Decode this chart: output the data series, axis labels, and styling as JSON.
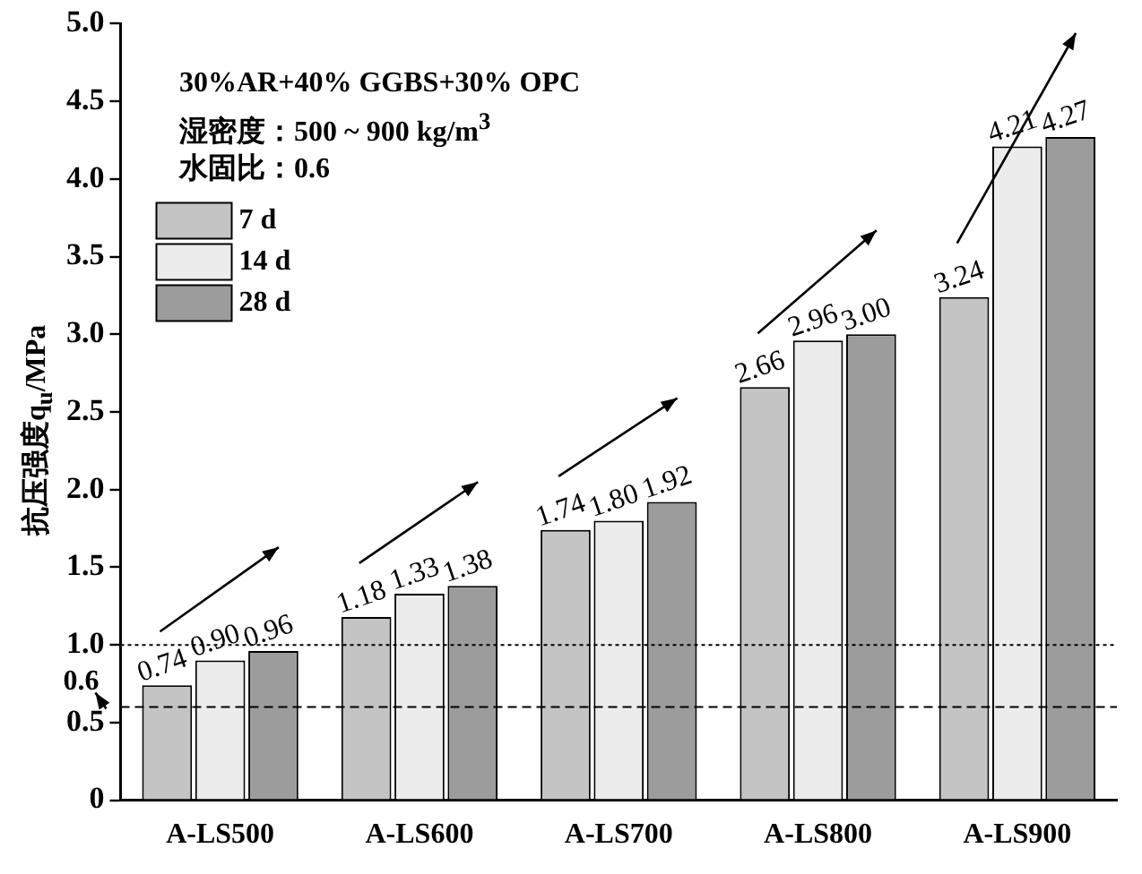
{
  "chart_data": {
    "type": "bar",
    "ylabel": "抗压强度q$_{u}$/MPa",
    "annotations": [
      "30%AR+40% GGBS+30% OPC",
      "湿密度：500 ~ 900 kg/m$^{3}$",
      "水固比：0.6"
    ],
    "categories": [
      "A-LS500",
      "A-LS600",
      "A-LS700",
      "A-LS800",
      "A-LS900"
    ],
    "series": [
      {
        "name": "7 d",
        "color": "#c4c4c4",
        "values": [
          0.74,
          1.18,
          1.74,
          2.66,
          3.24
        ],
        "value_labels": [
          "0.74",
          "1.18",
          "1.74",
          "2.66",
          "3.24"
        ]
      },
      {
        "name": "14 d",
        "color": "#ececec",
        "values": [
          0.9,
          1.33,
          1.8,
          2.96,
          4.21
        ],
        "value_labels": [
          "0.90",
          "1.33",
          "1.80",
          "2.96",
          "4.21"
        ]
      },
      {
        "name": "28 d",
        "color": "#9c9c9c",
        "values": [
          0.96,
          1.38,
          1.92,
          3.0,
          4.27
        ],
        "value_labels": [
          "0.96",
          "1.38",
          "1.92",
          "3.00",
          "4.27"
        ]
      }
    ],
    "ylim": [
      0,
      5
    ],
    "yticks": [
      {
        "value": 0,
        "label": "0"
      },
      {
        "value": 0.5,
        "label": "0.5"
      },
      {
        "value": 1,
        "label": "1.0"
      },
      {
        "value": 1.5,
        "label": "1.5"
      },
      {
        "value": 2,
        "label": "2.0"
      },
      {
        "value": 2.5,
        "label": "2.5"
      },
      {
        "value": 3,
        "label": "3.0"
      },
      {
        "value": 3.5,
        "label": "3.5"
      },
      {
        "value": 4,
        "label": "4.0"
      },
      {
        "value": 4.5,
        "label": "4.5"
      },
      {
        "value": 5,
        "label": "5.0"
      }
    ],
    "ref_lines": [
      {
        "axis": "y",
        "value": 1.0,
        "line_style": "dotted"
      },
      {
        "axis": "y",
        "value": 0.6,
        "label": "0.6",
        "line_style": "dashed"
      }
    ],
    "legend": "top left",
    "grid": false
  }
}
